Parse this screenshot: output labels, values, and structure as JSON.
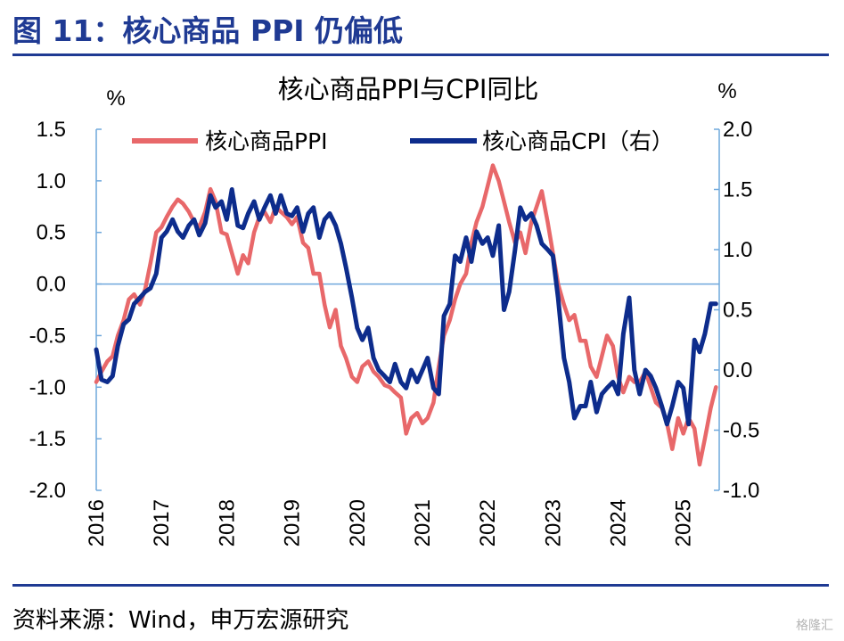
{
  "figure": {
    "title": "图 11：核心商品 PPI 仍偏低",
    "source": "资料来源：Wind，申万宏源研究",
    "watermark": "格隆汇"
  },
  "chart_data": {
    "type": "line",
    "title": "核心商品PPI与CPI同比",
    "left_unit": "%",
    "right_unit": "%",
    "x_ticks": [
      "2016",
      "2017",
      "2018",
      "2019",
      "2020",
      "2021",
      "2022",
      "2023",
      "2024",
      "2025"
    ],
    "x_range": [
      2016.0,
      2025.55
    ],
    "y_left_range": [
      -2.0,
      1.5
    ],
    "y_left_ticks": [
      "1.5",
      "1.0",
      "0.5",
      "0.0",
      "-0.5",
      "-1.0",
      "-1.5",
      "-2.0"
    ],
    "y_right_range": [
      -1.0,
      2.0
    ],
    "y_right_ticks": [
      "2.0",
      "1.5",
      "1.0",
      "0.5",
      "0.0",
      "-0.5",
      "-1.0"
    ],
    "grid": false,
    "legend_position": "top",
    "colors": {
      "ppi": "#e8686a",
      "cpi": "#0d2c8c",
      "axis": "#6fa8dc",
      "title": "#1f3a93"
    },
    "series": [
      {
        "name": "核心商品PPI",
        "axis": "left",
        "x": [
          2016.0,
          2016.08,
          2016.17,
          2016.25,
          2016.33,
          2016.42,
          2016.5,
          2016.58,
          2016.67,
          2016.75,
          2016.83,
          2016.92,
          2017.0,
          2017.08,
          2017.17,
          2017.25,
          2017.33,
          2017.42,
          2017.5,
          2017.58,
          2017.67,
          2017.75,
          2017.83,
          2017.92,
          2018.0,
          2018.08,
          2018.17,
          2018.25,
          2018.33,
          2018.42,
          2018.5,
          2018.58,
          2018.67,
          2018.75,
          2018.83,
          2018.92,
          2019.0,
          2019.08,
          2019.17,
          2019.25,
          2019.33,
          2019.42,
          2019.5,
          2019.58,
          2019.67,
          2019.75,
          2019.83,
          2019.92,
          2020.0,
          2020.08,
          2020.17,
          2020.25,
          2020.33,
          2020.42,
          2020.5,
          2020.58,
          2020.67,
          2020.75,
          2020.83,
          2020.92,
          2021.0,
          2021.08,
          2021.17,
          2021.25,
          2021.33,
          2021.42,
          2021.5,
          2021.58,
          2021.67,
          2021.75,
          2021.83,
          2021.92,
          2022.0,
          2022.08,
          2022.17,
          2022.25,
          2022.33,
          2022.42,
          2022.5,
          2022.58,
          2022.67,
          2022.75,
          2022.83,
          2022.92,
          2023.0,
          2023.08,
          2023.17,
          2023.25,
          2023.33,
          2023.42,
          2023.5,
          2023.58,
          2023.67,
          2023.75,
          2023.83,
          2023.92,
          2024.0,
          2024.08,
          2024.17,
          2024.25,
          2024.33,
          2024.42,
          2024.5,
          2024.58,
          2024.67,
          2024.75,
          2024.83,
          2024.92,
          2025.0,
          2025.08,
          2025.17,
          2025.25,
          2025.33,
          2025.42,
          2025.5
        ],
        "values": [
          -0.95,
          -0.85,
          -0.75,
          -0.7,
          -0.5,
          -0.35,
          -0.15,
          -0.1,
          -0.2,
          -0.05,
          0.2,
          0.5,
          0.55,
          0.65,
          0.75,
          0.82,
          0.78,
          0.7,
          0.6,
          0.55,
          0.7,
          0.92,
          0.8,
          0.5,
          0.48,
          0.3,
          0.1,
          0.28,
          0.2,
          0.5,
          0.65,
          0.7,
          0.6,
          0.75,
          0.7,
          0.65,
          0.58,
          0.65,
          0.4,
          0.35,
          0.1,
          0.1,
          -0.2,
          -0.42,
          -0.25,
          -0.6,
          -0.72,
          -0.9,
          -0.95,
          -0.8,
          -0.75,
          -0.85,
          -0.9,
          -0.98,
          -1.0,
          -1.05,
          -1.1,
          -1.45,
          -1.3,
          -1.25,
          -1.35,
          -1.3,
          -1.15,
          -0.8,
          -0.5,
          -0.35,
          -0.15,
          0.0,
          0.1,
          0.4,
          0.6,
          0.75,
          0.95,
          1.15,
          1.0,
          0.8,
          0.6,
          0.4,
          0.5,
          0.3,
          0.6,
          0.75,
          0.9,
          0.6,
          0.3,
          0.0,
          -0.2,
          -0.35,
          -0.3,
          -0.55,
          -0.55,
          -0.8,
          -0.9,
          -0.7,
          -0.5,
          -0.6,
          -0.9,
          -1.05,
          -0.9,
          -0.95,
          -0.95,
          -0.85,
          -1.0,
          -1.15,
          -1.2,
          -1.35,
          -1.6,
          -1.3,
          -1.45,
          -1.3,
          -1.4,
          -1.75,
          -1.5,
          -1.2,
          -1.0
        ]
      },
      {
        "name": "核心商品CPI（右）",
        "axis": "right",
        "x": [
          2016.0,
          2016.08,
          2016.17,
          2016.25,
          2016.33,
          2016.42,
          2016.5,
          2016.58,
          2016.67,
          2016.75,
          2016.83,
          2016.92,
          2017.0,
          2017.08,
          2017.17,
          2017.25,
          2017.33,
          2017.42,
          2017.5,
          2017.58,
          2017.67,
          2017.75,
          2017.83,
          2017.92,
          2018.0,
          2018.08,
          2018.17,
          2018.25,
          2018.33,
          2018.42,
          2018.5,
          2018.58,
          2018.67,
          2018.75,
          2018.83,
          2018.92,
          2019.0,
          2019.08,
          2019.17,
          2019.25,
          2019.33,
          2019.42,
          2019.5,
          2019.58,
          2019.67,
          2019.75,
          2019.83,
          2019.92,
          2020.0,
          2020.08,
          2020.17,
          2020.25,
          2020.33,
          2020.42,
          2020.5,
          2020.58,
          2020.67,
          2020.75,
          2020.83,
          2020.92,
          2021.0,
          2021.08,
          2021.17,
          2021.25,
          2021.33,
          2021.42,
          2021.5,
          2021.58,
          2021.67,
          2021.75,
          2021.83,
          2021.92,
          2022.0,
          2022.08,
          2022.17,
          2022.25,
          2022.33,
          2022.42,
          2022.5,
          2022.58,
          2022.67,
          2022.75,
          2022.83,
          2022.92,
          2023.0,
          2023.08,
          2023.17,
          2023.25,
          2023.33,
          2023.42,
          2023.5,
          2023.58,
          2023.67,
          2023.75,
          2023.83,
          2023.92,
          2024.0,
          2024.08,
          2024.17,
          2024.25,
          2024.33,
          2024.42,
          2024.5,
          2024.58,
          2024.67,
          2024.75,
          2024.83,
          2024.92,
          2025.0,
          2025.08,
          2025.17,
          2025.25,
          2025.33,
          2025.42,
          2025.5
        ],
        "values": [
          0.17,
          -0.08,
          -0.1,
          -0.05,
          0.2,
          0.38,
          0.42,
          0.55,
          0.6,
          0.65,
          0.68,
          0.8,
          1.1,
          1.15,
          1.25,
          1.15,
          1.1,
          1.2,
          1.25,
          1.12,
          1.22,
          1.45,
          1.35,
          1.4,
          1.25,
          1.5,
          1.2,
          1.18,
          1.3,
          1.4,
          1.25,
          1.35,
          1.45,
          1.3,
          1.45,
          1.3,
          1.28,
          1.35,
          1.15,
          1.3,
          1.35,
          1.1,
          1.25,
          1.3,
          1.2,
          1.05,
          0.85,
          0.6,
          0.35,
          0.25,
          0.35,
          0.1,
          0.0,
          -0.05,
          -0.1,
          0.05,
          -0.1,
          -0.15,
          0.0,
          -0.1,
          0.0,
          0.1,
          -0.15,
          -0.2,
          0.45,
          0.55,
          0.95,
          0.9,
          1.1,
          0.9,
          1.15,
          1.05,
          1.1,
          0.95,
          1.2,
          0.5,
          0.65,
          1.0,
          1.35,
          1.25,
          1.3,
          1.2,
          1.05,
          1.0,
          0.95,
          0.6,
          0.1,
          -0.1,
          -0.4,
          -0.3,
          -0.3,
          -0.1,
          -0.35,
          -0.2,
          -0.15,
          -0.1,
          -0.2,
          0.3,
          0.6,
          0.0,
          -0.2,
          0.0,
          -0.05,
          -0.15,
          -0.3,
          -0.45,
          -0.3,
          -0.1,
          -0.15,
          -0.45,
          0.25,
          0.15,
          0.3,
          0.55,
          0.55
        ]
      }
    ]
  }
}
